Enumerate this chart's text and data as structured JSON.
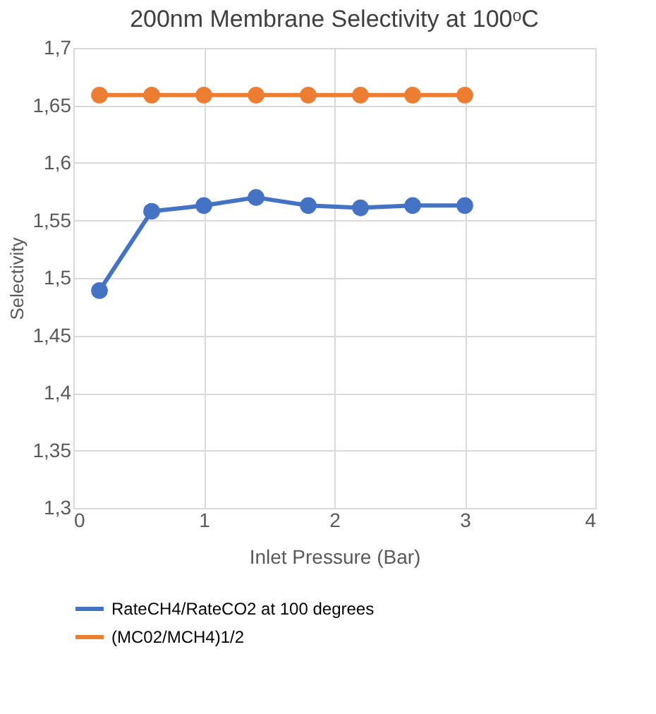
{
  "chart_data": {
    "type": "line",
    "title": "200nm Membrane Selectivity at 100ᵒC",
    "xlabel": "Inlet Pressure (Bar)",
    "ylabel": "Selectivity",
    "x": [
      0.2,
      0.6,
      1.0,
      1.4,
      1.8,
      2.2,
      2.6,
      3.0
    ],
    "series": [
      {
        "name": "RateCH4/RateCO2 at 100 degrees",
        "color": "#4472c4",
        "values": [
          1.489,
          1.558,
          1.563,
          1.57,
          1.563,
          1.561,
          1.563,
          1.563
        ]
      },
      {
        "name": "(MC02/MCH4)1/2",
        "color": "#ed7d31",
        "values": [
          1.659,
          1.659,
          1.659,
          1.659,
          1.659,
          1.659,
          1.659,
          1.659
        ]
      }
    ],
    "xlim": [
      0,
      4
    ],
    "xticks": [
      0,
      1,
      2,
      3,
      4
    ],
    "ylim": [
      1.3,
      1.7
    ],
    "yticks": [
      {
        "value": 1.3,
        "label": "1,3"
      },
      {
        "value": 1.35,
        "label": "1,35"
      },
      {
        "value": 1.4,
        "label": "1,4"
      },
      {
        "value": 1.45,
        "label": "1,45"
      },
      {
        "value": 1.5,
        "label": "1,5"
      },
      {
        "value": 1.55,
        "label": "1,55"
      },
      {
        "value": 1.6,
        "label": "1,6"
      },
      {
        "value": 1.65,
        "label": "1,65"
      },
      {
        "value": 1.7,
        "label": "1,7"
      }
    ],
    "grid": true,
    "legend": "bottom",
    "marker": "circle",
    "line_style": "solid"
  }
}
